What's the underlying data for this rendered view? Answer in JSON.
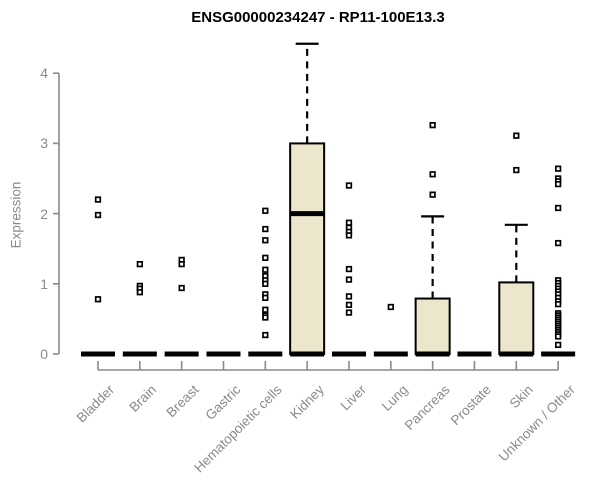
{
  "title": "ENSG00000234247 - RP11-100E13.3",
  "colors": {
    "background": "#ffffff",
    "box_fill": "#ece7cc",
    "box_stroke": "#000000",
    "median": "#000000",
    "outlier": "#000000",
    "axis": "#8a8a8a",
    "tick_label": "#8a8a8a",
    "title_text": "#000000"
  },
  "chart_data": {
    "type": "boxplot",
    "title": "ENSG00000234247 - RP11-100E13.3",
    "xlabel": "",
    "ylabel": "Expression",
    "ylim": [
      0,
      4.45
    ],
    "yticks": [
      0,
      1,
      2,
      3,
      4
    ],
    "grid": false,
    "legend": false,
    "categories": [
      "Bladder",
      "Brain",
      "Breast",
      "Gastric",
      "Hematopoietic cells",
      "Kidney",
      "Liver",
      "Lung",
      "Pancreas",
      "Prostate",
      "Skin",
      "Unknown / Other"
    ],
    "series": [
      {
        "name": "Bladder",
        "q1": 0,
        "median": 0,
        "q3": 0,
        "whisker_low": 0,
        "whisker_high": 0,
        "outliers": [
          2.2,
          1.98,
          0.78
        ]
      },
      {
        "name": "Brain",
        "q1": 0,
        "median": 0,
        "q3": 0,
        "whisker_low": 0,
        "whisker_high": 0,
        "outliers": [
          1.28,
          0.97,
          0.93,
          0.88
        ]
      },
      {
        "name": "Breast",
        "q1": 0,
        "median": 0,
        "q3": 0,
        "whisker_low": 0,
        "whisker_high": 0,
        "outliers": [
          1.34,
          1.28,
          0.94
        ]
      },
      {
        "name": "Gastric",
        "q1": 0,
        "median": 0,
        "q3": 0,
        "whisker_low": 0,
        "whisker_high": 0,
        "outliers": []
      },
      {
        "name": "Hematopoietic cells",
        "q1": 0,
        "median": 0,
        "q3": 0,
        "whisker_low": 0,
        "whisker_high": 0,
        "outliers": [
          2.04,
          1.78,
          1.62,
          1.37,
          1.2,
          1.11,
          1.05,
          1.0,
          0.85,
          0.8,
          0.63,
          0.55,
          0.52,
          0.27
        ]
      },
      {
        "name": "Kidney",
        "q1": 0,
        "median": 2.0,
        "q3": 3.0,
        "whisker_low": 0,
        "whisker_high": 4.42,
        "outliers": []
      },
      {
        "name": "Liver",
        "q1": 0,
        "median": 0,
        "q3": 0,
        "whisker_low": 0,
        "whisker_high": 0,
        "outliers": [
          2.4,
          1.87,
          1.8,
          1.74,
          1.69,
          1.21,
          1.06,
          0.82,
          0.7,
          0.59
        ]
      },
      {
        "name": "Lung",
        "q1": 0,
        "median": 0,
        "q3": 0,
        "whisker_low": 0,
        "whisker_high": 0,
        "outliers": [
          0.67
        ]
      },
      {
        "name": "Pancreas",
        "q1": 0,
        "median": 0,
        "q3": 0.79,
        "whisker_low": 0,
        "whisker_high": 1.96,
        "outliers": [
          3.26,
          2.56,
          2.27
        ]
      },
      {
        "name": "Prostate",
        "q1": 0,
        "median": 0,
        "q3": 0,
        "whisker_low": 0,
        "whisker_high": 0,
        "outliers": []
      },
      {
        "name": "Skin",
        "q1": 0,
        "median": 0,
        "q3": 1.02,
        "whisker_low": 0,
        "whisker_high": 1.84,
        "outliers": [
          3.11,
          2.62
        ]
      },
      {
        "name": "Unknown / Other",
        "q1": 0,
        "median": 0,
        "q3": 0,
        "whisker_low": 0,
        "whisker_high": 0,
        "outliers": [
          2.64,
          2.5,
          2.46,
          2.42,
          2.08,
          1.58,
          1.05,
          1.01,
          0.97,
          0.93,
          0.89,
          0.85,
          0.8,
          0.75,
          0.71,
          0.58,
          0.55,
          0.52,
          0.49,
          0.46,
          0.43,
          0.4,
          0.37,
          0.34,
          0.31,
          0.28,
          0.25,
          0.13
        ]
      }
    ]
  }
}
